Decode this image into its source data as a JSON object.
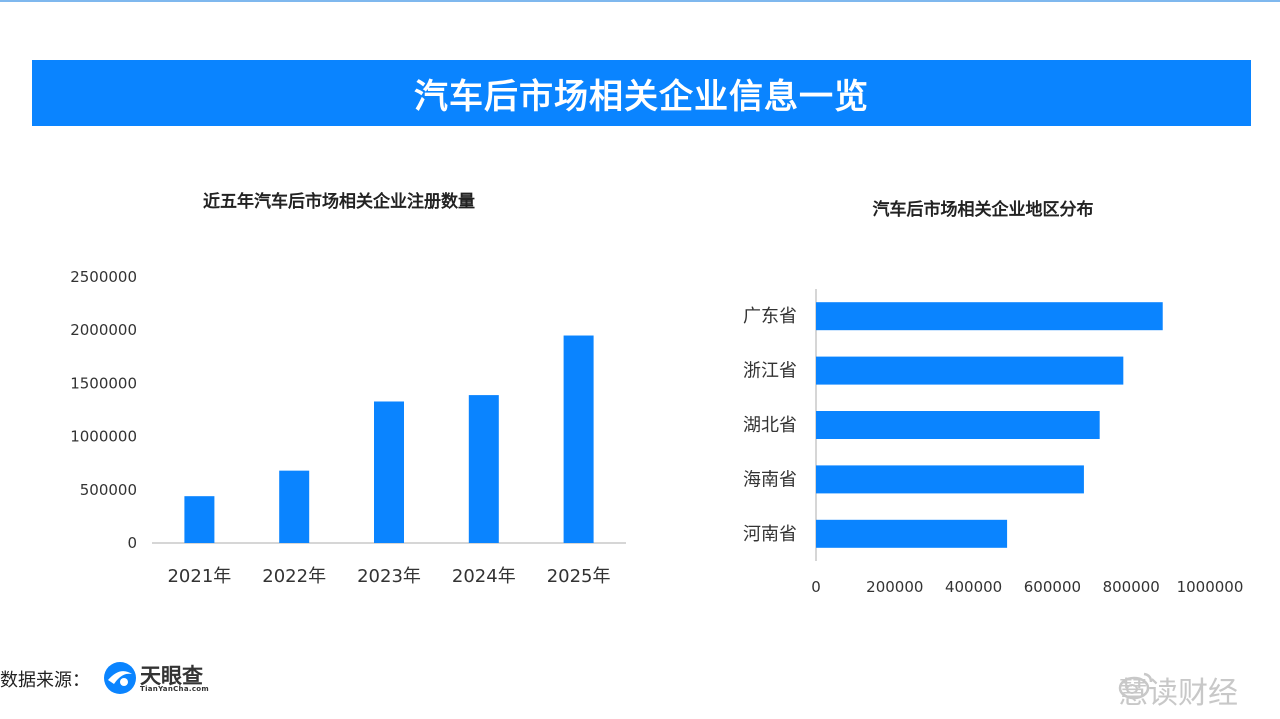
{
  "header": {
    "title": "汽车后市场相关企业信息一览"
  },
  "colors": {
    "accent": "#0a84ff",
    "axis": "#c8c8c8"
  },
  "chart_data": [
    {
      "type": "bar",
      "title": "近五年汽车后市场相关企业注册数量",
      "categories": [
        "2021年",
        "2022年",
        "2023年",
        "2024年",
        "2025年"
      ],
      "values": [
        440000,
        680000,
        1330000,
        1390000,
        1950000
      ],
      "ylim": [
        0,
        2500000
      ],
      "yticks": [
        "0",
        "500000",
        "1000000",
        "1500000",
        "2000000",
        "2500000"
      ],
      "grid": false
    },
    {
      "type": "bar",
      "orientation": "horizontal",
      "title": "汽车后市场相关企业地区分布",
      "categories": [
        "广东省",
        "浙江省",
        "湖北省",
        "海南省",
        "河南省"
      ],
      "values": [
        880000,
        780000,
        720000,
        680000,
        485000
      ],
      "xlim": [
        0,
        1000000
      ],
      "xticks": [
        "0",
        "200000",
        "400000",
        "600000",
        "800000",
        "1000000"
      ],
      "grid": false
    }
  ],
  "footer": {
    "source_label": "数据来源：",
    "logo_text": "天眼查",
    "logo_sub": "TianYanCha.com"
  },
  "watermark": {
    "text": "慧读财经"
  }
}
